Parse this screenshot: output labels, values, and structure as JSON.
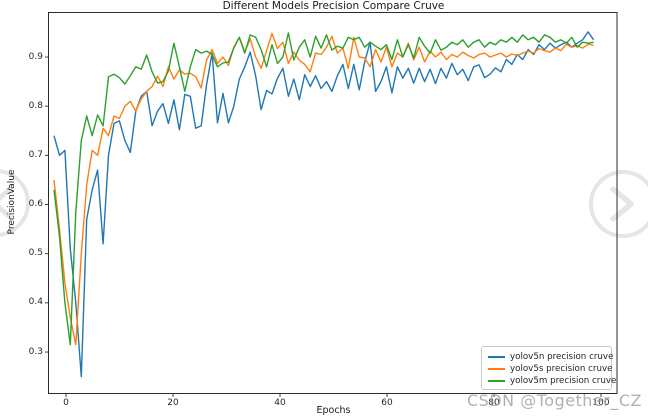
{
  "chart_data": {
    "type": "line",
    "title": "Different Models Precision Compare Cruve",
    "xlabel": "Epochs",
    "ylabel": "PrecisionValue",
    "xticks": [
      0,
      20,
      40,
      60,
      80,
      100
    ],
    "yticks": [
      0.3,
      0.4,
      0.5,
      0.6,
      0.7,
      0.8,
      0.9
    ],
    "xlim": [
      -2,
      102
    ],
    "ylim": [
      0.217,
      0.99
    ],
    "grid": false,
    "legend_position": "lower right",
    "series": [
      {
        "name": "yolov5n precision cruve",
        "color": "#1f77b4",
        "values": [
          0.74,
          0.7,
          0.71,
          0.51,
          0.4,
          0.25,
          0.57,
          0.63,
          0.67,
          0.52,
          0.7,
          0.765,
          0.77,
          0.73,
          0.706,
          0.79,
          0.82,
          0.83,
          0.76,
          0.79,
          0.805,
          0.765,
          0.813,
          0.752,
          0.824,
          0.82,
          0.755,
          0.76,
          0.844,
          0.908,
          0.766,
          0.826,
          0.766,
          0.8,
          0.855,
          0.88,
          0.91,
          0.861,
          0.793,
          0.832,
          0.825,
          0.857,
          0.877,
          0.82,
          0.855,
          0.813,
          0.864,
          0.84,
          0.862,
          0.836,
          0.85,
          0.83,
          0.862,
          0.885,
          0.836,
          0.885,
          0.833,
          0.89,
          0.93,
          0.83,
          0.85,
          0.88,
          0.827,
          0.88,
          0.857,
          0.877,
          0.847,
          0.877,
          0.85,
          0.875,
          0.846,
          0.877,
          0.857,
          0.887,
          0.864,
          0.875,
          0.852,
          0.88,
          0.884,
          0.858,
          0.865,
          0.878,
          0.87,
          0.895,
          0.885,
          0.905,
          0.895,
          0.915,
          0.905,
          0.925,
          0.915,
          0.928,
          0.918,
          0.925,
          0.93,
          0.92,
          0.928,
          0.935,
          0.951,
          0.935
        ]
      },
      {
        "name": "yolov5s precision cruve",
        "color": "#ff7f0e",
        "values": [
          0.65,
          0.55,
          0.44,
          0.37,
          0.315,
          0.5,
          0.64,
          0.71,
          0.7,
          0.755,
          0.74,
          0.78,
          0.775,
          0.8,
          0.81,
          0.79,
          0.815,
          0.83,
          0.84,
          0.861,
          0.84,
          0.88,
          0.855,
          0.874,
          0.865,
          0.867,
          0.86,
          0.837,
          0.894,
          0.915,
          0.887,
          0.9,
          0.883,
          0.92,
          0.94,
          0.91,
          0.937,
          0.9,
          0.877,
          0.913,
          0.948,
          0.917,
          0.93,
          0.887,
          0.91,
          0.894,
          0.885,
          0.87,
          0.908,
          0.905,
          0.92,
          0.942,
          0.908,
          0.918,
          0.877,
          0.94,
          0.9,
          0.898,
          0.88,
          0.915,
          0.89,
          0.92,
          0.88,
          0.908,
          0.9,
          0.928,
          0.894,
          0.92,
          0.89,
          0.912,
          0.9,
          0.91,
          0.895,
          0.905,
          0.9,
          0.91,
          0.903,
          0.898,
          0.905,
          0.908,
          0.9,
          0.904,
          0.908,
          0.9,
          0.906,
          0.903,
          0.908,
          0.912,
          0.908,
          0.917,
          0.913,
          0.91,
          0.918,
          0.913,
          0.926,
          0.92,
          0.923,
          0.918,
          0.926,
          0.924
        ]
      },
      {
        "name": "yolov5m precision cruve",
        "color": "#2ca02c",
        "values": [
          0.63,
          0.535,
          0.4,
          0.315,
          0.585,
          0.73,
          0.78,
          0.74,
          0.782,
          0.76,
          0.86,
          0.865,
          0.858,
          0.845,
          0.862,
          0.88,
          0.875,
          0.904,
          0.87,
          0.847,
          0.85,
          0.872,
          0.928,
          0.88,
          0.83,
          0.88,
          0.915,
          0.908,
          0.912,
          0.905,
          0.88,
          0.888,
          0.89,
          0.918,
          0.94,
          0.908,
          0.945,
          0.94,
          0.915,
          0.88,
          0.925,
          0.887,
          0.9,
          0.949,
          0.894,
          0.92,
          0.935,
          0.9,
          0.942,
          0.918,
          0.945,
          0.914,
          0.922,
          0.918,
          0.94,
          0.935,
          0.94,
          0.92,
          0.93,
          0.922,
          0.915,
          0.925,
          0.895,
          0.935,
          0.9,
          0.925,
          0.898,
          0.94,
          0.922,
          0.908,
          0.935,
          0.914,
          0.92,
          0.93,
          0.925,
          0.935,
          0.92,
          0.93,
          0.935,
          0.92,
          0.93,
          0.925,
          0.935,
          0.93,
          0.94,
          0.93,
          0.945,
          0.935,
          0.94,
          0.93,
          0.945,
          0.94,
          0.93,
          0.935,
          0.928,
          0.94,
          0.92,
          0.93,
          0.928,
          0.93
        ]
      }
    ]
  },
  "watermark": {
    "text": "CSDN @Together_CZ",
    "color": "#a0a0a0",
    "prev_icon": "chevron-left-circle",
    "next_icon": "chevron-right-circle",
    "icon_color": "#e5e5e5"
  }
}
